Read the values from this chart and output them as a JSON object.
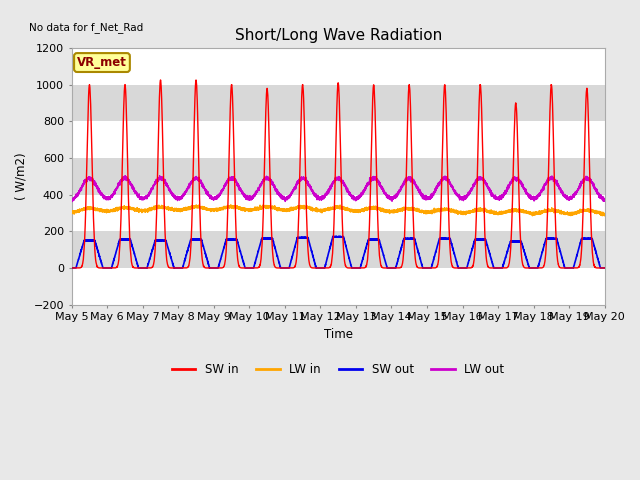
{
  "title": "Short/Long Wave Radiation",
  "no_data_text": "No data for f_Net_Rad",
  "ylabel": "( W/m2)",
  "xlabel": "Time",
  "ylim": [
    -200,
    1200
  ],
  "yticks": [
    -200,
    0,
    200,
    400,
    600,
    800,
    1000,
    1200
  ],
  "n_days": 15,
  "x_tick_labels": [
    "May 5",
    "May 6",
    "May 7",
    "May 8",
    "May 9",
    "May 10",
    "May 11",
    "May 12",
    "May 13",
    "May 14",
    "May 15",
    "May 16",
    "May 17",
    "May 18",
    "May 19",
    "May 20"
  ],
  "colors": {
    "SW_in": "#FF0000",
    "LW_in": "#FFA500",
    "SW_out": "#0000EE",
    "LW_out": "#CC00CC"
  },
  "legend_entries": [
    "SW in",
    "LW in",
    "SW out",
    "LW out"
  ],
  "VR_met_box_color": "#FFFF99",
  "VR_met_border_color": "#AA8800",
  "background_color": "#E8E8E8",
  "white_band": "#FFFFFF",
  "gray_band": "#D8D8D8",
  "SW_in_peaks": [
    1000,
    1000,
    1025,
    1025,
    1000,
    980,
    1000,
    1010,
    1000,
    1000,
    1000,
    1000,
    900,
    1000,
    980
  ],
  "SW_out_peaks": [
    150,
    155,
    150,
    155,
    155,
    160,
    165,
    170,
    155,
    160,
    160,
    155,
    145,
    160,
    160
  ],
  "LW_in_base": 300,
  "LW_in_amp": 25,
  "LW_out_base": 360,
  "LW_out_amp": 130
}
